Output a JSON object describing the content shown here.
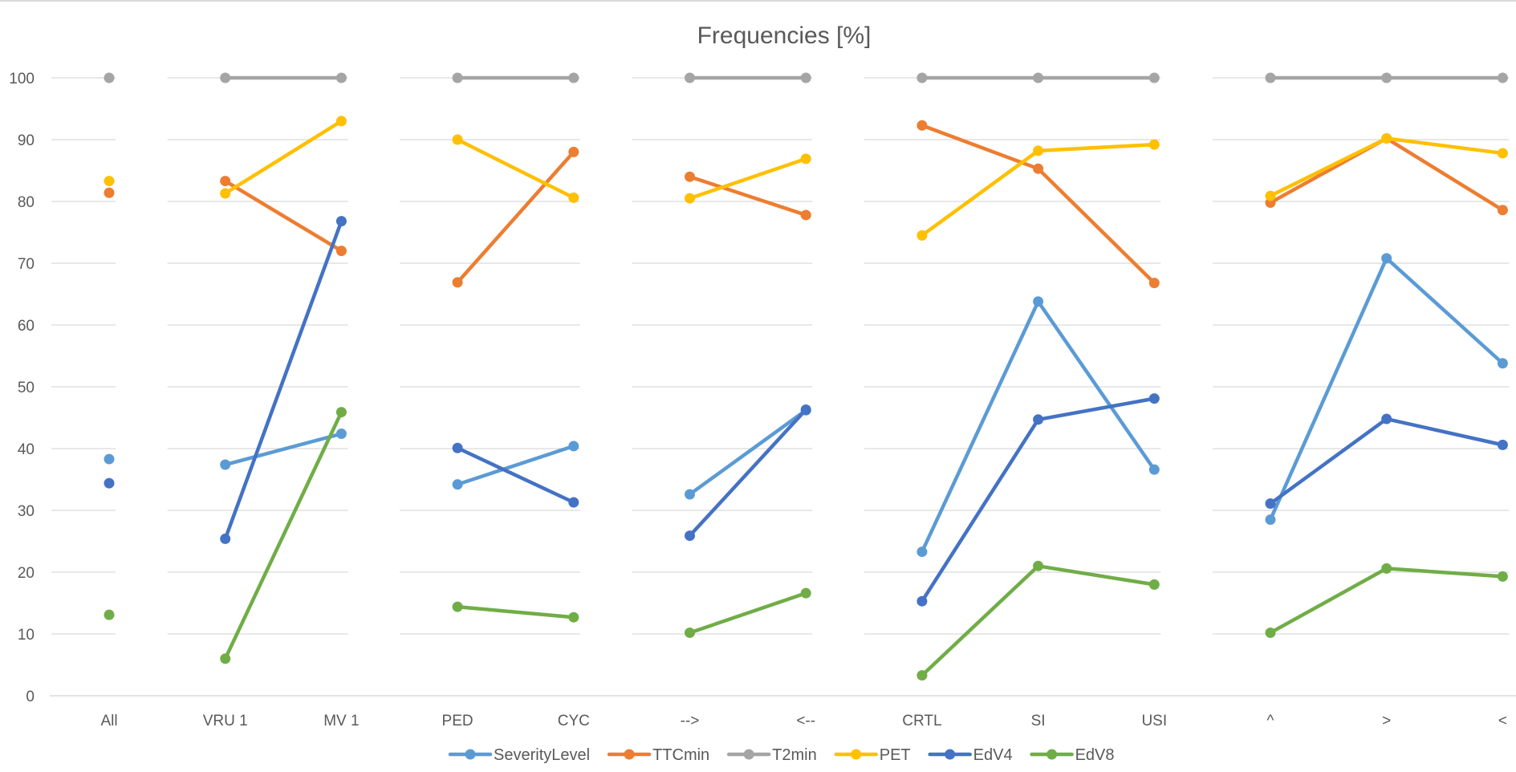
{
  "chart_data": {
    "type": "line",
    "title": "Frequencies [%]",
    "xlabel": "",
    "ylabel": "",
    "ylim": [
      0,
      100
    ],
    "yticks": [
      0,
      10,
      20,
      30,
      40,
      50,
      60,
      70,
      80,
      90,
      100
    ],
    "grid": true,
    "legend_position": "bottom",
    "categories": [
      "All",
      "VRU 1",
      "MV 1",
      "PED",
      "CYC",
      "-->",
      "<--",
      "CRTL",
      "SI",
      "USI",
      "^",
      ">",
      "<"
    ],
    "groups": [
      [
        0
      ],
      [
        1,
        2
      ],
      [
        3,
        4
      ],
      [
        5,
        6
      ],
      [
        7,
        8,
        9
      ],
      [
        10,
        11,
        12
      ]
    ],
    "series": [
      {
        "name": "SeverityLevel",
        "color": "#5b9bd5",
        "values": [
          38.3,
          37.4,
          42.4,
          34.2,
          40.4,
          32.6,
          46.2,
          23.3,
          63.8,
          36.6,
          28.5,
          70.8,
          53.8
        ]
      },
      {
        "name": "TTCmin",
        "color": "#ed7d31",
        "values": [
          81.4,
          83.3,
          72.0,
          66.9,
          88.0,
          84.0,
          77.8,
          92.3,
          85.3,
          66.8,
          79.8,
          90.2,
          78.6
        ]
      },
      {
        "name": "T2min",
        "color": "#a5a5a5",
        "values": [
          100,
          100,
          100,
          100,
          100,
          100,
          100,
          100,
          100,
          100,
          100,
          100,
          100
        ]
      },
      {
        "name": "PET",
        "color": "#ffc000",
        "values": [
          83.3,
          81.3,
          93.0,
          90.0,
          80.6,
          80.5,
          86.9,
          74.5,
          88.2,
          89.2,
          80.9,
          90.2,
          87.8
        ]
      },
      {
        "name": "EdV4",
        "color": "#4472c4",
        "values": [
          34.4,
          25.4,
          76.8,
          40.1,
          31.3,
          25.9,
          46.3,
          15.3,
          44.7,
          48.1,
          31.1,
          44.8,
          40.6
        ]
      },
      {
        "name": "EdV8",
        "color": "#70ad47",
        "values": [
          13.1,
          6.0,
          45.9,
          14.4,
          12.7,
          10.2,
          16.6,
          3.3,
          21.0,
          18.0,
          10.2,
          20.6,
          19.3
        ]
      }
    ]
  }
}
